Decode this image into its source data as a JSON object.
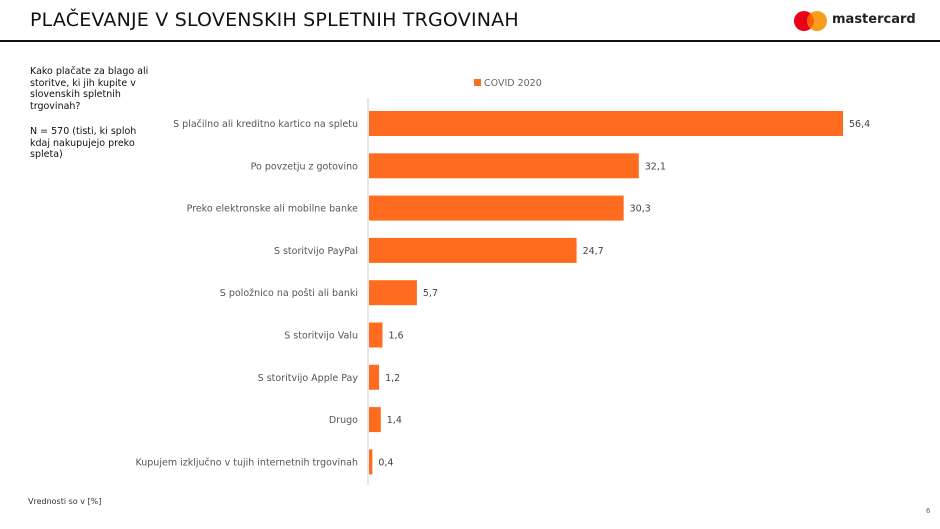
{
  "header": {
    "title": "PLAČEVANJE V SLOVENSKIH SPLETNIH TRGOVINAH",
    "logo_text": "mastercard",
    "logo_colors": {
      "left": "#EB001B",
      "right": "#F79E1B",
      "overlap": "#FF5F00"
    }
  },
  "sidebar": {
    "question": "Kako plačate za blago ali storitve, ki jih kupite v slovenskih spletnih trgovinah?",
    "sample": "N = 570 (tisti, ki sploh kdaj nakupujejo preko spleta)"
  },
  "footnote": "Vrednosti so v [%]",
  "page_number": "6",
  "chart_data": {
    "type": "bar",
    "orientation": "horizontal",
    "categories": [
      "S plačilno ali kreditno kartico na spletu",
      "Po povzetju z gotovino",
      "Preko elektronske ali mobilne banke",
      "S storitvijo PayPal",
      "S položnico na pošti ali banki",
      "S storitvijo Valu",
      "S storitvijo Apple Pay",
      "Drugo",
      "Kupujem izključno v tujih internetnih trgovinah"
    ],
    "series": [
      {
        "name": "COVID 2020",
        "values": [
          56.4,
          32.1,
          30.3,
          24.7,
          5.7,
          1.6,
          1.2,
          1.4,
          0.4
        ],
        "labels": [
          "56,4",
          "32,1",
          "30,3",
          "24,7",
          "5,7",
          "1,6",
          "1,2",
          "1,4",
          "0,4"
        ],
        "color": "#FF6B1F"
      }
    ],
    "xlim": [
      0,
      60
    ],
    "grid": false,
    "legend_position": "top"
  }
}
